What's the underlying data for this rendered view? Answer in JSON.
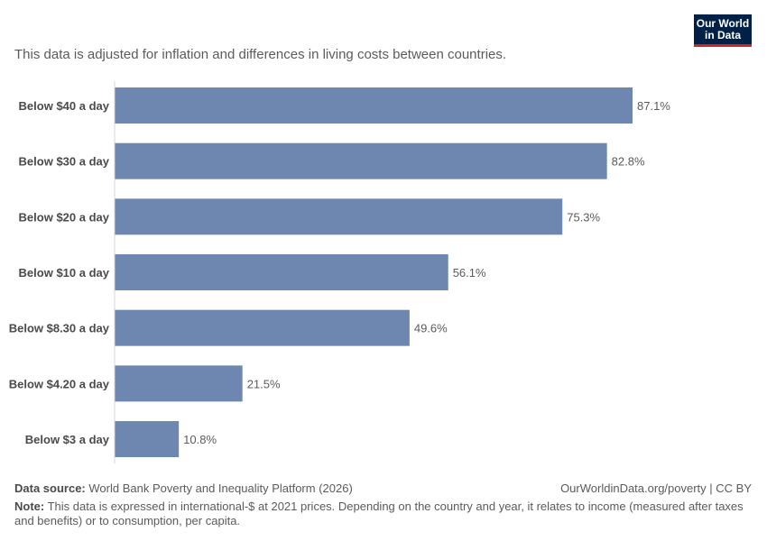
{
  "header": {
    "subtitle": "This data is adjusted for inflation and differences in living costs between countries."
  },
  "logo": {
    "line1": "Our World",
    "line2": "in Data",
    "colors": {
      "background": "#002147",
      "accent": "#ce261e"
    }
  },
  "chart_data": {
    "type": "bar",
    "orientation": "horizontal",
    "categories": [
      "Below $40 a day",
      "Below $30 a day",
      "Below $20 a day",
      "Below $10 a day",
      "Below $8.30 a day",
      "Below $4.20 a day",
      "Below $3 a day"
    ],
    "values": [
      87.1,
      82.8,
      75.3,
      56.1,
      49.6,
      21.5,
      10.8
    ],
    "value_labels": [
      "87.1%",
      "82.8%",
      "75.3%",
      "56.1%",
      "49.6%",
      "21.5%",
      "10.8%"
    ],
    "unit": "%",
    "xlim": [
      0,
      87.1
    ],
    "grid": false,
    "bar_color": "#6d87b0"
  },
  "footer": {
    "source_label": "Data source:",
    "source_text": "World Bank Poverty and Inequality Platform (2026)",
    "credit": "OurWorldinData.org/poverty | CC BY",
    "note_label": "Note:",
    "note_text": "This data is expressed in international-$ at 2021 prices. Depending on the country and year, it relates to income (measured after taxes and benefits) or to consumption, per capita."
  }
}
